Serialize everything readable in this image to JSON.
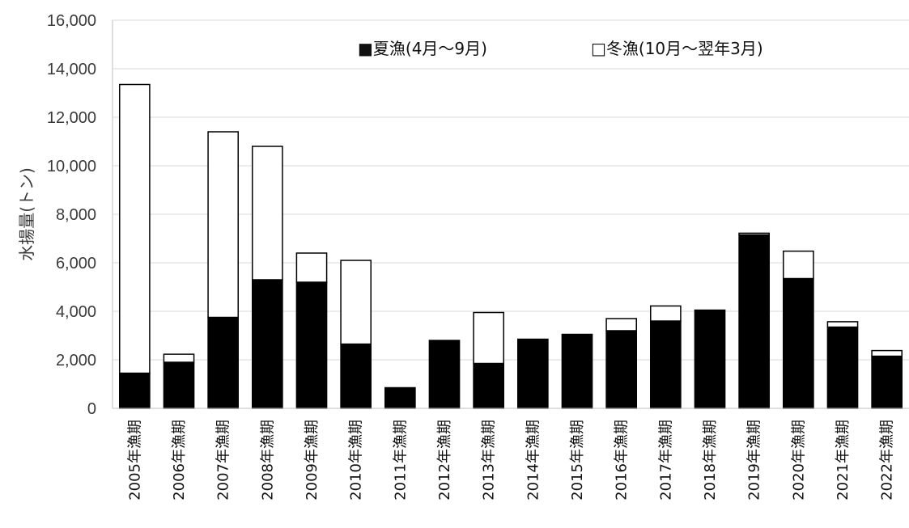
{
  "chart_data": {
    "type": "bar",
    "stacked": true,
    "ylabel": "水揚量(トン)",
    "ylim": [
      0,
      16000
    ],
    "yticks": [
      0,
      2000,
      4000,
      6000,
      8000,
      10000,
      12000,
      14000,
      16000
    ],
    "ytick_labels": [
      "0",
      "2,000",
      "4,000",
      "6,000",
      "8,000",
      "10,000",
      "12,000",
      "14,000",
      "16,000"
    ],
    "grid": true,
    "legend_position": "top",
    "categories": [
      "2005年漁期",
      "2006年漁期",
      "2007年漁期",
      "2008年漁期",
      "2009年漁期",
      "2010年漁期",
      "2011年漁期",
      "2012年漁期",
      "2013年漁期",
      "2014年漁期",
      "2015年漁期",
      "2016年漁期",
      "2017年漁期",
      "2018年漁期",
      "2019年漁期",
      "2020年漁期",
      "2021年漁期",
      "2022年漁期"
    ],
    "series": [
      {
        "name": "夏漁(4月～9月)",
        "color": "#000000",
        "values": [
          1450,
          1900,
          3750,
          5300,
          5200,
          2650,
          850,
          2800,
          1850,
          2850,
          3050,
          3200,
          3600,
          4050,
          7150,
          5350,
          3350,
          2150
        ]
      },
      {
        "name": "冬漁(10月～翌年3月)",
        "color": "#ffffff",
        "values": [
          11900,
          330,
          7650,
          5500,
          1200,
          3450,
          0,
          0,
          2100,
          0,
          0,
          500,
          620,
          0,
          70,
          1130,
          220,
          230
        ]
      }
    ],
    "legend_markers": [
      "■",
      "□"
    ]
  }
}
